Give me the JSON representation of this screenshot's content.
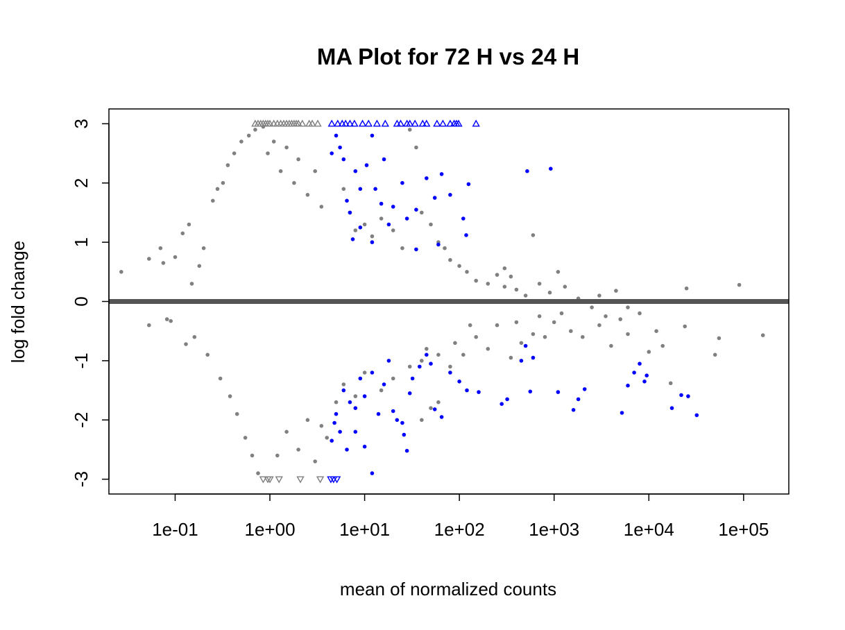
{
  "chart_data": {
    "type": "scatter",
    "title": "MA Plot for 72 H vs 24 H",
    "xlabel": "mean of normalized counts",
    "ylabel": "log fold change",
    "x_scale": "log10",
    "xlim": [
      0.02,
      300000
    ],
    "ylim": [
      -3.25,
      3.25
    ],
    "x_ticks": [
      0.1,
      1,
      10,
      100,
      1000,
      10000,
      100000
    ],
    "x_tick_labels": [
      "1e-01",
      "1e+00",
      "1e+01",
      "1e+02",
      "1e+03",
      "1e+04",
      "1e+05"
    ],
    "y_ticks": [
      -3,
      -2,
      -1,
      0,
      1,
      2,
      3
    ],
    "y_tick_labels": [
      "-3",
      "-2",
      "-1",
      "0",
      "1",
      "2",
      "3"
    ],
    "reference_line": {
      "y": 0,
      "color": "#555555"
    },
    "colors": {
      "not_significant": "#808080",
      "significant": "#0000ff"
    },
    "series": [
      {
        "significant": false,
        "marker": "dot",
        "points": [
          [
            0.027,
            0.5
          ],
          [
            0.053,
            0.72
          ],
          [
            0.053,
            -0.4
          ],
          [
            0.07,
            0.9
          ],
          [
            0.075,
            0.65
          ],
          [
            0.082,
            -0.3
          ],
          [
            0.09,
            -0.33
          ],
          [
            0.1,
            0.75
          ],
          [
            0.12,
            1.15
          ],
          [
            0.14,
            1.3
          ],
          [
            0.13,
            -0.72
          ],
          [
            0.15,
            0.3
          ],
          [
            0.16,
            -0.6
          ],
          [
            0.18,
            0.6
          ],
          [
            0.2,
            0.9
          ],
          [
            0.22,
            -0.9
          ],
          [
            0.25,
            1.7
          ],
          [
            0.28,
            1.9
          ],
          [
            0.3,
            -1.3
          ],
          [
            0.32,
            2.0
          ],
          [
            0.36,
            2.3
          ],
          [
            0.38,
            -1.6
          ],
          [
            0.42,
            2.5
          ],
          [
            0.45,
            -1.9
          ],
          [
            0.5,
            2.7
          ],
          [
            0.55,
            -2.3
          ],
          [
            0.6,
            2.8
          ],
          [
            0.65,
            -2.6
          ],
          [
            0.7,
            2.9
          ],
          [
            0.75,
            -2.9
          ],
          [
            0.85,
            2.95
          ],
          [
            0.95,
            2.5
          ],
          [
            1.1,
            2.7
          ],
          [
            1.3,
            2.2
          ],
          [
            1.5,
            2.6
          ],
          [
            1.8,
            2.0
          ],
          [
            2.0,
            2.4
          ],
          [
            2.5,
            1.8
          ],
          [
            3.0,
            2.2
          ],
          [
            3.5,
            1.6
          ],
          [
            1.2,
            -2.6
          ],
          [
            1.5,
            -2.2
          ],
          [
            2.0,
            -2.5
          ],
          [
            2.5,
            -2.0
          ],
          [
            3.0,
            -2.7
          ],
          [
            3.5,
            -2.1
          ],
          [
            4.0,
            -2.3
          ],
          [
            5.0,
            -1.7
          ],
          [
            6.0,
            1.9
          ],
          [
            7.0,
            1.5
          ],
          [
            8.0,
            1.2
          ],
          [
            10.0,
            1.3
          ],
          [
            12.0,
            1.1
          ],
          [
            15.0,
            1.4
          ],
          [
            20.0,
            1.2
          ],
          [
            25.0,
            0.9
          ],
          [
            30.0,
            2.9
          ],
          [
            35.0,
            2.6
          ],
          [
            40.0,
            1.5
          ],
          [
            50.0,
            1.3
          ],
          [
            60.0,
            1.0
          ],
          [
            70.0,
            0.9
          ],
          [
            80.0,
            0.7
          ],
          [
            100.0,
            0.6
          ],
          [
            6.0,
            -1.4
          ],
          [
            8.0,
            -1.6
          ],
          [
            10.0,
            -1.2
          ],
          [
            15.0,
            -1.5
          ],
          [
            20.0,
            -1.3
          ],
          [
            30.0,
            -1.1
          ],
          [
            40.0,
            -1.0
          ],
          [
            60.0,
            -0.9
          ],
          [
            120.0,
            0.5
          ],
          [
            150.0,
            0.35
          ],
          [
            200.0,
            0.3
          ],
          [
            250.0,
            0.45
          ],
          [
            300.0,
            0.25
          ],
          [
            400.0,
            0.2
          ],
          [
            500.0,
            0.1
          ],
          [
            600.0,
            1.12
          ],
          [
            700.0,
            0.3
          ],
          [
            900.0,
            0.15
          ],
          [
            1100.0,
            0.5
          ],
          [
            1300.0,
            0.25
          ],
          [
            1800.0,
            0.05
          ],
          [
            2500.0,
            -0.1
          ],
          [
            3000.0,
            0.1
          ],
          [
            4500.0,
            0.18
          ],
          [
            6000.0,
            -0.1
          ],
          [
            8000.0,
            -0.2
          ],
          [
            12000.0,
            -0.5
          ],
          [
            25000.0,
            0.22
          ],
          [
            50000.0,
            -0.9
          ],
          [
            55000.0,
            -0.62
          ],
          [
            90000.0,
            0.28
          ],
          [
            160000.0,
            -0.57
          ],
          [
            150.0,
            -0.6
          ],
          [
            200.0,
            -0.8
          ],
          [
            250.0,
            -0.4
          ],
          [
            350.0,
            -0.95
          ],
          [
            450.0,
            -0.7
          ],
          [
            600.0,
            -0.55
          ],
          [
            800.0,
            -0.6
          ],
          [
            1000.0,
            -0.35
          ],
          [
            1500.0,
            -0.5
          ],
          [
            2000.0,
            -0.6
          ],
          [
            3000.0,
            -0.4
          ],
          [
            4000.0,
            -0.75
          ],
          [
            6000.0,
            -0.55
          ],
          [
            10000.0,
            -0.85
          ],
          [
            14000.0,
            -0.75
          ],
          [
            17000.0,
            -1.38
          ],
          [
            24000.0,
            -0.42
          ],
          [
            5000.0,
            -0.3
          ],
          [
            3500.0,
            -0.25
          ],
          [
            1200.0,
            -0.2
          ],
          [
            700.0,
            -0.25
          ],
          [
            400.0,
            -0.35
          ],
          [
            300.0,
            0.56
          ],
          [
            350.0,
            0.42
          ],
          [
            40.0,
            -2.0
          ],
          [
            50.0,
            -1.8
          ],
          [
            60.0,
            -1.7
          ],
          [
            45.0,
            -0.8
          ],
          [
            80.0,
            -1.1
          ],
          [
            90.0,
            -0.7
          ],
          [
            110.0,
            -0.9
          ],
          [
            130.0,
            -0.4
          ]
        ]
      },
      {
        "significant": false,
        "marker": "triangle-up",
        "points": [
          [
            0.7,
            3
          ],
          [
            0.75,
            3
          ],
          [
            0.8,
            3
          ],
          [
            0.85,
            3
          ],
          [
            0.9,
            3
          ],
          [
            0.95,
            3
          ],
          [
            1.0,
            3
          ],
          [
            1.1,
            3
          ],
          [
            1.2,
            3
          ],
          [
            1.3,
            3
          ],
          [
            1.4,
            3
          ],
          [
            1.5,
            3
          ],
          [
            1.6,
            3
          ],
          [
            1.7,
            3
          ],
          [
            1.8,
            3
          ],
          [
            1.9,
            3
          ],
          [
            2.0,
            3
          ],
          [
            2.2,
            3
          ],
          [
            2.6,
            3
          ],
          [
            2.8,
            3
          ],
          [
            3.2,
            3
          ]
        ]
      },
      {
        "significant": false,
        "marker": "triangle-down",
        "points": [
          [
            0.85,
            -3
          ],
          [
            0.95,
            -3
          ],
          [
            1.0,
            -3
          ],
          [
            1.25,
            -3
          ],
          [
            2.1,
            -3
          ],
          [
            3.4,
            -3
          ]
        ]
      },
      {
        "significant": true,
        "marker": "dot",
        "points": [
          [
            4.5,
            2.5
          ],
          [
            5.0,
            2.8
          ],
          [
            5.5,
            2.6
          ],
          [
            6.0,
            2.4
          ],
          [
            6.5,
            1.7
          ],
          [
            7.0,
            1.5
          ],
          [
            8.0,
            2.2
          ],
          [
            9.0,
            1.9
          ],
          [
            10.5,
            2.3
          ],
          [
            12.0,
            2.8
          ],
          [
            13.0,
            1.9
          ],
          [
            15.0,
            1.65
          ],
          [
            16.0,
            2.4
          ],
          [
            20.0,
            1.6
          ],
          [
            25.0,
            2.0
          ],
          [
            28.0,
            1.4
          ],
          [
            35.0,
            1.55
          ],
          [
            45.0,
            2.08
          ],
          [
            55.0,
            1.75
          ],
          [
            65.0,
            2.15
          ],
          [
            80.0,
            1.8
          ],
          [
            110.0,
            1.4
          ],
          [
            125.0,
            1.98
          ],
          [
            118.0,
            1.12
          ],
          [
            60.0,
            0.96
          ],
          [
            35.0,
            0.88
          ],
          [
            18.0,
            1.3
          ],
          [
            12.0,
            1.0
          ],
          [
            9.0,
            1.25
          ],
          [
            7.5,
            1.05
          ],
          [
            520.0,
            2.2
          ],
          [
            920.0,
            2.24
          ],
          [
            5.0,
            -1.9
          ],
          [
            6.0,
            -1.5
          ],
          [
            7.0,
            -1.7
          ],
          [
            8.0,
            -1.8
          ],
          [
            9.0,
            -1.3
          ],
          [
            10.0,
            -1.6
          ],
          [
            12.0,
            -1.2
          ],
          [
            14.0,
            -1.9
          ],
          [
            16.0,
            -1.4
          ],
          [
            18.0,
            -1.0
          ],
          [
            20.0,
            -1.85
          ],
          [
            22.0,
            -2.0
          ],
          [
            25.0,
            -2.05
          ],
          [
            26.0,
            -2.25
          ],
          [
            28.0,
            -2.52
          ],
          [
            30.0,
            -1.55
          ],
          [
            32.0,
            -1.3
          ],
          [
            38.0,
            -1.1
          ],
          [
            45.0,
            -0.9
          ],
          [
            50.0,
            -1.05
          ],
          [
            55.0,
            -1.82
          ],
          [
            65.0,
            -1.95
          ],
          [
            80.0,
            -1.2
          ],
          [
            100.0,
            -1.35
          ],
          [
            120.0,
            -1.5
          ],
          [
            160.0,
            -1.53
          ],
          [
            280.0,
            -1.73
          ],
          [
            320.0,
            -1.65
          ],
          [
            450.0,
            -1.0
          ],
          [
            500.0,
            -0.75
          ],
          [
            560.0,
            -1.52
          ],
          [
            600.0,
            -0.95
          ],
          [
            1100.0,
            -1.53
          ],
          [
            1600.0,
            -1.83
          ],
          [
            1800.0,
            -1.65
          ],
          [
            2100.0,
            -1.48
          ],
          [
            5200.0,
            -1.88
          ],
          [
            6000.0,
            -1.42
          ],
          [
            7000.0,
            -1.2
          ],
          [
            8000.0,
            -1.05
          ],
          [
            9000.0,
            -1.35
          ],
          [
            9500.0,
            -1.25
          ],
          [
            17500.0,
            -1.8
          ],
          [
            22000.0,
            -1.58
          ],
          [
            26000.0,
            -1.6
          ],
          [
            32000.0,
            -1.92
          ],
          [
            4.5,
            -2.35
          ],
          [
            5.5,
            -2.2
          ],
          [
            12.0,
            -2.9
          ],
          [
            10.0,
            -2.45
          ],
          [
            8.0,
            -2.2
          ],
          [
            6.5,
            -2.5
          ],
          [
            4.8,
            -2.05
          ]
        ]
      },
      {
        "significant": true,
        "marker": "triangle-up",
        "points": [
          [
            4.5,
            3
          ],
          [
            5.2,
            3
          ],
          [
            5.8,
            3
          ],
          [
            6.3,
            3
          ],
          [
            7.0,
            3
          ],
          [
            7.8,
            3
          ],
          [
            9.5,
            3
          ],
          [
            11.0,
            3
          ],
          [
            13.5,
            3
          ],
          [
            16.5,
            3
          ],
          [
            22.0,
            3
          ],
          [
            24.0,
            3
          ],
          [
            28.0,
            3
          ],
          [
            30.0,
            3
          ],
          [
            34.0,
            3
          ],
          [
            41.0,
            3
          ],
          [
            45.0,
            3
          ],
          [
            58.0,
            3
          ],
          [
            67.0,
            3
          ],
          [
            80.0,
            3
          ],
          [
            88.0,
            3
          ],
          [
            93.0,
            3
          ],
          [
            98.0,
            3
          ],
          [
            150.0,
            3
          ]
        ]
      },
      {
        "significant": true,
        "marker": "triangle-down",
        "points": [
          [
            4.4,
            -3
          ],
          [
            4.7,
            -3
          ],
          [
            5.1,
            -3
          ]
        ]
      }
    ]
  }
}
